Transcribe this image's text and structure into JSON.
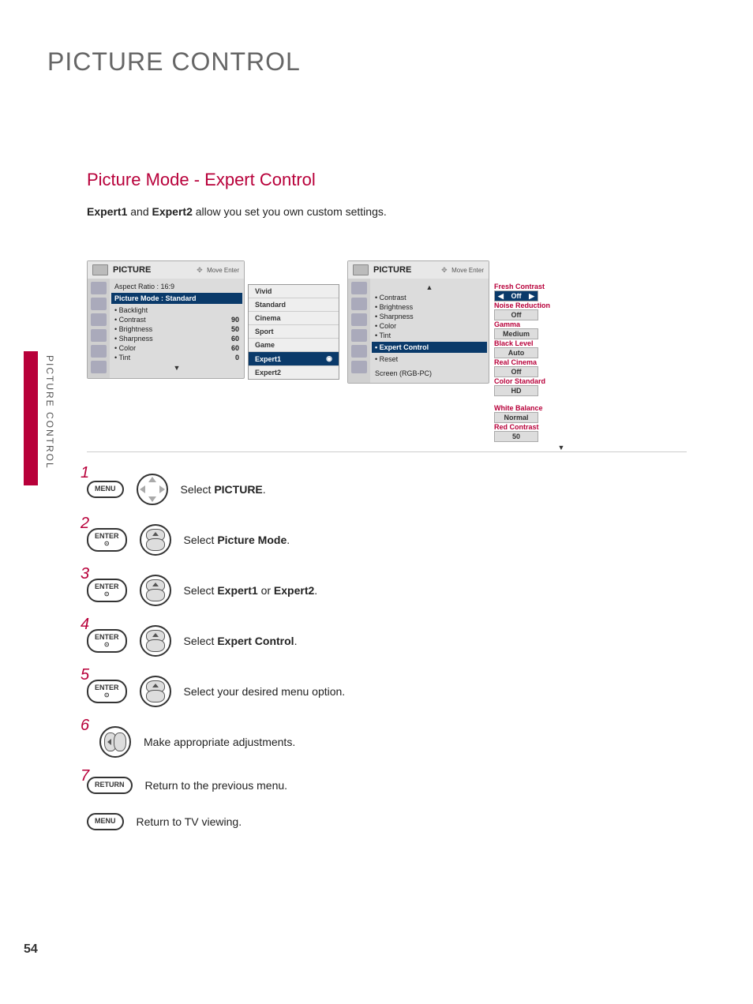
{
  "page": {
    "title": "PICTURE CONTROL",
    "side_label": "PICTURE CONTROL",
    "page_number": "54"
  },
  "section": {
    "title": "Picture Mode - Expert Control",
    "intro_prefix": " and ",
    "intro_bold1": "Expert1",
    "intro_bold2": "Expert2",
    "intro_suffix": " allow you set you own custom settings."
  },
  "left_menu": {
    "header": "PICTURE",
    "nav_hint": "Move    Enter",
    "aspect_label": "Aspect Ratio   : 16:9",
    "mode_label": "Picture Mode  : Standard",
    "rows": [
      {
        "label": "• Backlight",
        "val": ""
      },
      {
        "label": "• Contrast",
        "val": "90"
      },
      {
        "label": "• Brightness",
        "val": "50"
      },
      {
        "label": "• Sharpness",
        "val": "60"
      },
      {
        "label": "• Color",
        "val": "60"
      },
      {
        "label": "• Tint",
        "val": "0"
      }
    ],
    "popup_top": "",
    "popup": [
      "Vivid",
      "Standard",
      "Cinema",
      "Sport",
      "Game",
      "Expert1",
      "Expert2"
    ],
    "popup_selected_index": 5
  },
  "right_menu": {
    "header": "PICTURE",
    "nav_hint": "Move    Enter",
    "rows": [
      "• Contrast",
      "• Brightness",
      "• Sharpness",
      "• Color",
      "• Tint",
      "• Expert Control",
      "• Reset"
    ],
    "highlight_index": 5,
    "bottom_label": "Screen (RGB-PC)",
    "expert": [
      {
        "label": "Fresh Contrast",
        "val": "Off",
        "sel": true
      },
      {
        "label": "Noise Reduction",
        "val": "Off"
      },
      {
        "label": "Gamma",
        "val": "Medium"
      },
      {
        "label": "Black Level",
        "val": "Auto"
      },
      {
        "label": "Real Cinema",
        "val": "Off"
      },
      {
        "label": "Color Standard",
        "val": "HD"
      },
      {
        "label": "White Balance",
        "val": "Normal"
      },
      {
        "label": "Red Contrast",
        "val": "50"
      }
    ]
  },
  "steps": [
    {
      "num": "1",
      "btn": "MENU",
      "nav": "four",
      "text_pre": "Select ",
      "bold": "PICTURE",
      "text_post": "."
    },
    {
      "num": "2",
      "btn": "ENTER",
      "btn_sub": "⊙",
      "nav": "ud",
      "text_pre": "Select ",
      "bold": "Picture Mode",
      "text_post": "."
    },
    {
      "num": "3",
      "btn": "ENTER",
      "btn_sub": "⊙",
      "nav": "ud",
      "text_pre": "Select ",
      "bold": "Expert1",
      "mid": " or ",
      "bold2": "Expert2",
      "text_post": "."
    },
    {
      "num": "4",
      "btn": "ENTER",
      "btn_sub": "⊙",
      "nav": "ud",
      "text_pre": "Select ",
      "bold": "Expert Control",
      "text_post": "."
    },
    {
      "num": "5",
      "btn": "ENTER",
      "btn_sub": "⊙",
      "nav": "ud",
      "text_pre": "Select your desired menu option.",
      "bold": "",
      "text_post": ""
    },
    {
      "num": "6",
      "btn": "",
      "nav": "lr",
      "text_pre": "Make appropriate adjustments.",
      "bold": "",
      "text_post": ""
    },
    {
      "num": "7",
      "btn": "RETURN",
      "nav": "",
      "text_pre": "Return to the previous menu.",
      "bold": "",
      "text_post": ""
    },
    {
      "num": "",
      "btn": "MENU",
      "nav": "",
      "text_pre": "Return to TV viewing.",
      "bold": "",
      "text_post": ""
    }
  ]
}
